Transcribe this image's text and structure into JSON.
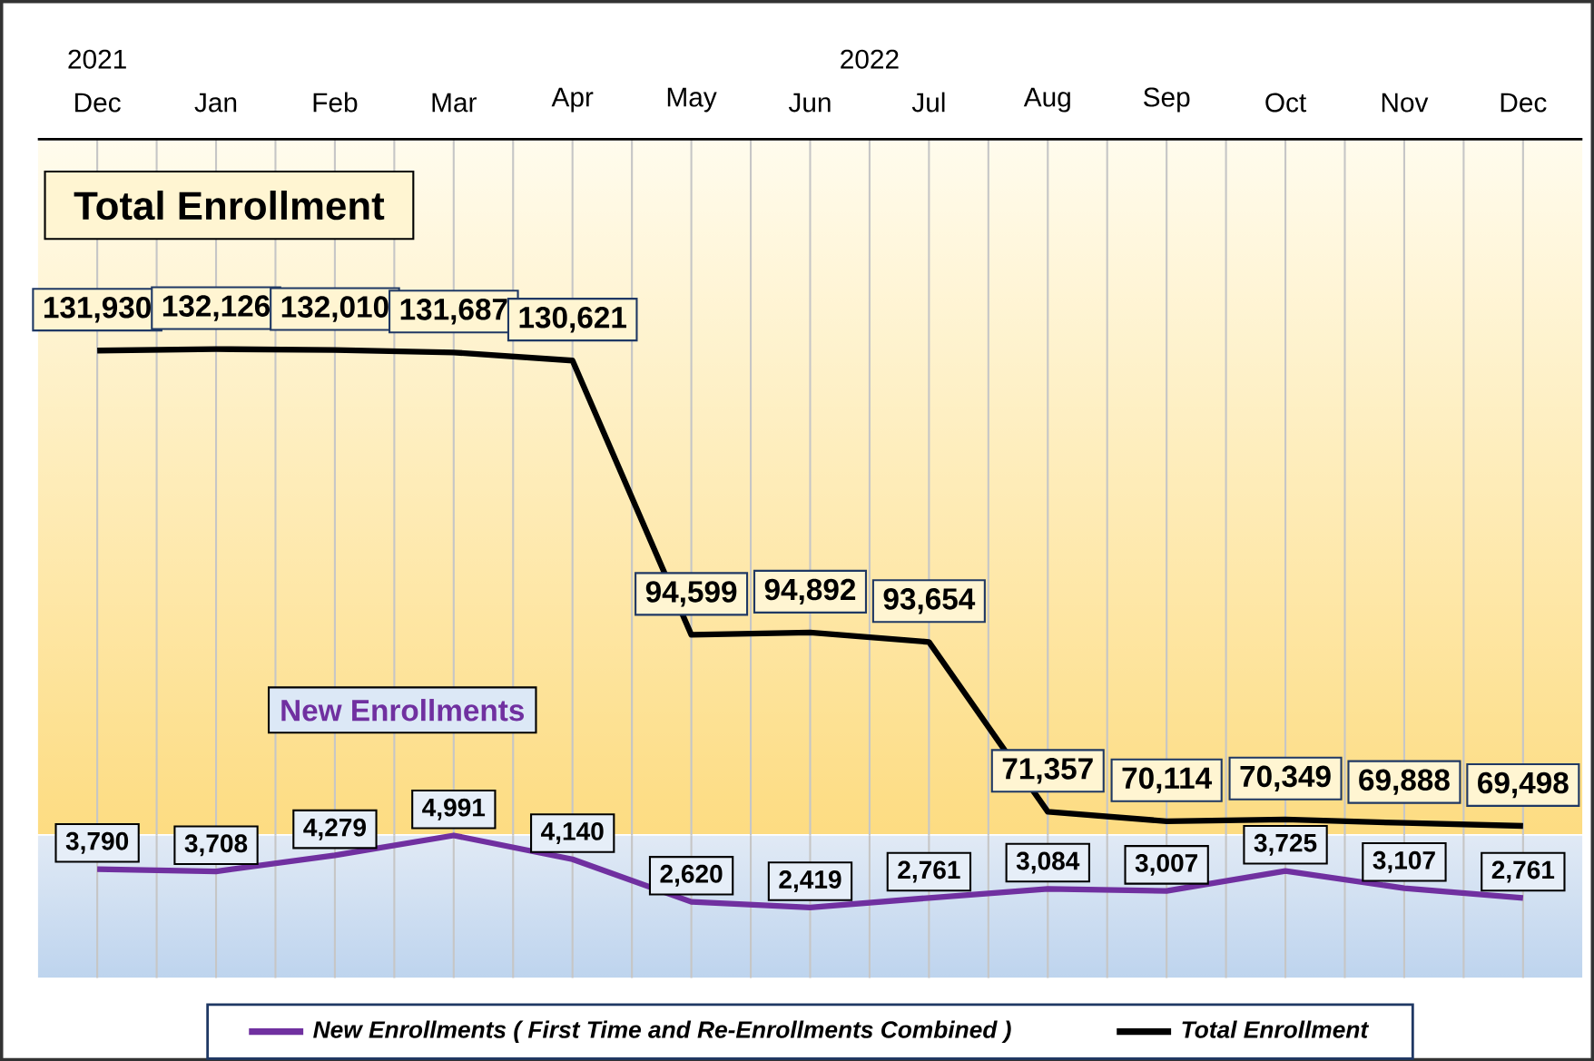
{
  "chart_data": [
    {
      "type": "line",
      "categories": [
        "Dec",
        "Jan",
        "Feb",
        "Mar",
        "Apr",
        "May",
        "Jun",
        "Jul",
        "Aug",
        "Sep",
        "Oct",
        "Nov",
        "Dec"
      ],
      "series": [
        {
          "name": "Total Enrollment",
          "color": "#000000",
          "values": [
            131930,
            132126,
            132010,
            131687,
            130621,
            94599,
            94892,
            93654,
            71357,
            70114,
            70349,
            69888,
            69498
          ],
          "value_labels": [
            "131,930",
            "132,126",
            "132,010",
            "131,687",
            "130,621",
            "94,599",
            "94,892",
            "93,654",
            "71,357",
            "70,114",
            "70,349",
            "69,888",
            "69,498"
          ]
        }
      ],
      "title": "Total Enrollment",
      "annotations": [
        "2021",
        "2022"
      ],
      "grid": "x",
      "legend": "bottom",
      "marker": "none",
      "line_style": "solid"
    },
    {
      "type": "line",
      "categories": [
        null,
        null,
        null,
        null,
        null,
        null,
        null,
        null,
        null,
        null,
        null,
        null,
        null
      ],
      "tick_labels": false,
      "series": [
        {
          "name": "New Enrollments ( First Time and Re-Enrollments Combined )",
          "color": "#7030a0",
          "values": [
            3790,
            3708,
            4279,
            4991,
            4140,
            2620,
            2419,
            2761,
            3084,
            3007,
            3725,
            3107,
            2761
          ],
          "value_labels": [
            "3,790",
            "3,708",
            "4,279",
            "4,991",
            "4,140",
            "2,620",
            "2,419",
            "2,761",
            "3,084",
            "3,007",
            "3,725",
            "3,107",
            "2,761"
          ]
        }
      ],
      "title": "New Enrollments",
      "grid": "x",
      "marker": "none",
      "line_style": "solid"
    }
  ]
}
